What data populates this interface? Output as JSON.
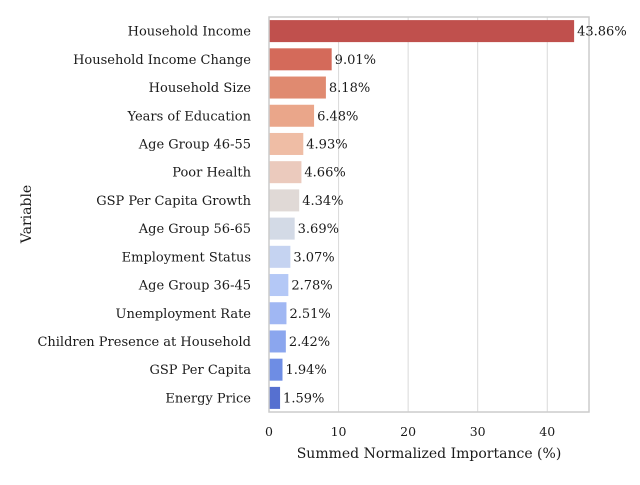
{
  "chart_data": {
    "type": "bar",
    "orientation": "horizontal",
    "xlabel": "Summed Normalized Importance (%)",
    "ylabel": "Variable",
    "xlim": [
      0,
      46
    ],
    "xticks": [
      0,
      10,
      20,
      30,
      40
    ],
    "grid": "vertical",
    "categories": [
      "Household Income",
      "Household Income Change",
      "Household Size",
      "Years of Education",
      "Age Group 46-55",
      "Poor Health",
      "GSP Per Capita Growth",
      "Age Group 56-65",
      "Employment Status",
      "Age Group 36-45",
      "Unemployment Rate",
      "Children Presence at Household",
      "GSP Per Capita",
      "Energy Price"
    ],
    "values": [
      43.86,
      9.01,
      8.18,
      6.48,
      4.93,
      4.66,
      4.34,
      3.69,
      3.07,
      2.78,
      2.51,
      2.42,
      1.94,
      1.59
    ],
    "value_labels": [
      "43.86%",
      "9.01%",
      "8.18%",
      "6.48%",
      "4.93%",
      "4.66%",
      "4.34%",
      "3.69%",
      "3.07%",
      "2.78%",
      "2.51%",
      "2.42%",
      "1.94%",
      "1.59%"
    ],
    "colors": [
      "#c0504d",
      "#d46a5a",
      "#e08a70",
      "#eaa68a",
      "#efbda5",
      "#ebcabd",
      "#e0d9d6",
      "#d3dae6",
      "#c5d3f1",
      "#b4c8f6",
      "#a0b7f3",
      "#8ba6ee",
      "#6e8de4",
      "#5670d0"
    ]
  }
}
